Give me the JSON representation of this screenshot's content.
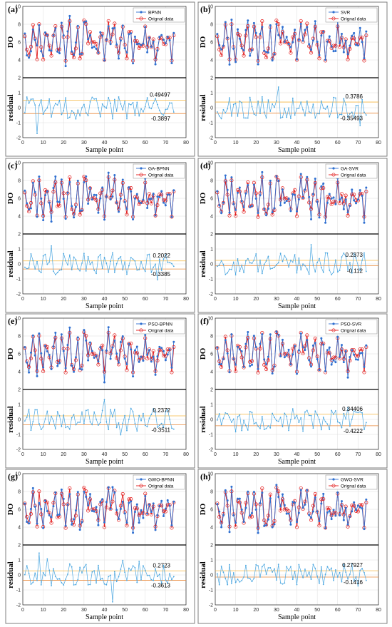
{
  "colors": {
    "predicted": "#2f6fd0",
    "original": "#e21b1b",
    "residual": "#4aa6e0",
    "upper_line": "#f4b642",
    "lower_line": "#e98838"
  },
  "chart_data": [
    {
      "type": "line",
      "panel": "(a)",
      "model": "BPNN",
      "legend": [
        "BPNN",
        "Orignal data"
      ],
      "ylabel_top": "DO",
      "ylabel_bottom": "residual",
      "xlabel": "Sample point",
      "xlim": [
        0,
        80
      ],
      "xticks": [
        0,
        10,
        20,
        30,
        40,
        50,
        60,
        70,
        80
      ],
      "ylim_top": [
        2,
        10
      ],
      "yticks_top": [
        2,
        4,
        6,
        8,
        10
      ],
      "ylim_bottom": [
        -2,
        2
      ],
      "yticks_bottom": [
        -2,
        -1,
        0,
        1,
        2
      ],
      "upper_bound": 0.49497,
      "lower_bound": -0.3897,
      "upper_label": "0.49497",
      "lower_label": "-0.3897",
      "original_seed": 11,
      "residual_seed": 101
    },
    {
      "type": "line",
      "panel": "(b)",
      "model": "SVR",
      "legend": [
        "SVR",
        "Orignal data"
      ],
      "ylabel_top": "DO",
      "ylabel_bottom": "residual",
      "xlabel": "Sample point",
      "xlim": [
        0,
        80
      ],
      "xticks": [
        0,
        10,
        20,
        30,
        40,
        50,
        60,
        70,
        80
      ],
      "ylim_top": [
        2,
        10
      ],
      "yticks_top": [
        2,
        4,
        6,
        8,
        10
      ],
      "ylim_bottom": [
        -2,
        2
      ],
      "yticks_bottom": [
        -2,
        -1,
        0,
        1,
        2
      ],
      "upper_bound": 0.3786,
      "lower_bound": -0.35493,
      "upper_label": "0.3786",
      "lower_label": "-0.35493",
      "original_seed": 11,
      "residual_seed": 202
    },
    {
      "type": "line",
      "panel": "(c)",
      "model": "GA-BPNN",
      "legend": [
        "GA-BPNN",
        "Orignal data"
      ],
      "ylabel_top": "DO",
      "ylabel_bottom": "residual",
      "xlabel": "Sample point",
      "xlim": [
        0,
        80
      ],
      "xticks": [
        0,
        10,
        20,
        30,
        40,
        50,
        60,
        70,
        80
      ],
      "ylim_top": [
        2,
        10
      ],
      "yticks_top": [
        2,
        4,
        6,
        8,
        10
      ],
      "ylim_bottom": [
        -2,
        2
      ],
      "yticks_bottom": [
        -2,
        -1,
        0,
        1,
        2
      ],
      "upper_bound": 0.2022,
      "lower_bound": -0.3385,
      "upper_label": "0.2022",
      "lower_label": "-0.3385",
      "original_seed": 11,
      "residual_seed": 303
    },
    {
      "type": "line",
      "panel": "(d)",
      "model": "GA-SVR",
      "legend": [
        "GA-SVR",
        "Orignal data"
      ],
      "ylabel_top": "DO",
      "ylabel_bottom": "residual",
      "xlabel": "Sample point",
      "xlim": [
        0,
        80
      ],
      "xticks": [
        0,
        10,
        20,
        30,
        40,
        50,
        60,
        70,
        80
      ],
      "ylim_top": [
        2,
        10
      ],
      "yticks_top": [
        2,
        4,
        6,
        8,
        10
      ],
      "ylim_bottom": [
        -2,
        2
      ],
      "yticks_bottom": [
        -2,
        -1,
        0,
        1,
        2
      ],
      "upper_bound": 0.2373,
      "lower_bound": -0.112,
      "upper_label": "0.2373",
      "lower_label": "-0.112",
      "original_seed": 11,
      "residual_seed": 404
    },
    {
      "type": "line",
      "panel": "(e)",
      "model": "PSO-BPNN",
      "legend": [
        "PSO-BPNN",
        "Orignal data"
      ],
      "ylabel_top": "DO",
      "ylabel_bottom": "residual",
      "xlabel": "Sample point",
      "xlim": [
        0,
        80
      ],
      "xticks": [
        0,
        10,
        20,
        30,
        40,
        50,
        60,
        70,
        80
      ],
      "ylim_top": [
        2,
        10
      ],
      "yticks_top": [
        2,
        4,
        6,
        8,
        10
      ],
      "ylim_bottom": [
        -2,
        2
      ],
      "yticks_bottom": [
        -2,
        -1,
        0,
        1,
        2
      ],
      "upper_bound": 0.2372,
      "lower_bound": -0.3511,
      "upper_label": "0.2372",
      "lower_label": "-0.3511",
      "original_seed": 11,
      "residual_seed": 505
    },
    {
      "type": "line",
      "panel": "(f)",
      "model": "PSO-SVR",
      "legend": [
        "PSO-SVR",
        "Orignal data"
      ],
      "ylabel_top": "DO",
      "ylabel_bottom": "residual",
      "xlabel": "Sample point",
      "xlim": [
        0,
        80
      ],
      "xticks": [
        0,
        10,
        20,
        30,
        40,
        50,
        60,
        70,
        80
      ],
      "ylim_top": [
        2,
        10
      ],
      "yticks_top": [
        2,
        4,
        6,
        8,
        10
      ],
      "ylim_bottom": [
        -2,
        2
      ],
      "yticks_bottom": [
        -2,
        -1,
        0,
        1,
        2
      ],
      "upper_bound": 0.34406,
      "lower_bound": -0.4222,
      "upper_label": "0.34406",
      "lower_label": "-0.4222",
      "original_seed": 11,
      "residual_seed": 606
    },
    {
      "type": "line",
      "panel": "(g)",
      "model": "GWO-BPNN",
      "legend": [
        "GWO-BPNN",
        "Orignal data"
      ],
      "ylabel_top": "DO",
      "ylabel_bottom": "residual",
      "xlabel": "Sample point",
      "xlim": [
        0,
        80
      ],
      "xticks": [
        0,
        10,
        20,
        30,
        40,
        50,
        60,
        70,
        80
      ],
      "ylim_top": [
        2,
        10
      ],
      "yticks_top": [
        2,
        4,
        6,
        8,
        10
      ],
      "ylim_bottom": [
        -2,
        2
      ],
      "yticks_bottom": [
        -2,
        -1,
        0,
        1,
        2
      ],
      "upper_bound": 0.2723,
      "lower_bound": -0.3613,
      "upper_label": "0.2723",
      "lower_label": "-0.3613",
      "original_seed": 11,
      "residual_seed": 707
    },
    {
      "type": "line",
      "panel": "(h)",
      "model": "GWO-SVR",
      "legend": [
        "GWO-SVR",
        "Orignal data"
      ],
      "ylabel_top": "DO",
      "ylabel_bottom": "residual",
      "xlabel": "Sample point",
      "xlim": [
        0,
        80
      ],
      "xticks": [
        0,
        10,
        20,
        30,
        40,
        50,
        60,
        70,
        80
      ],
      "ylim_top": [
        2,
        10
      ],
      "yticks_top": [
        2,
        4,
        6,
        8,
        10
      ],
      "ylim_bottom": [
        -2,
        2
      ],
      "yticks_bottom": [
        -2,
        -1,
        0,
        1,
        2
      ],
      "upper_bound": 0.27927,
      "lower_bound": -0.1416,
      "upper_label": "0.27927",
      "lower_label": "-0.1416",
      "original_seed": 11,
      "residual_seed": 808
    }
  ]
}
